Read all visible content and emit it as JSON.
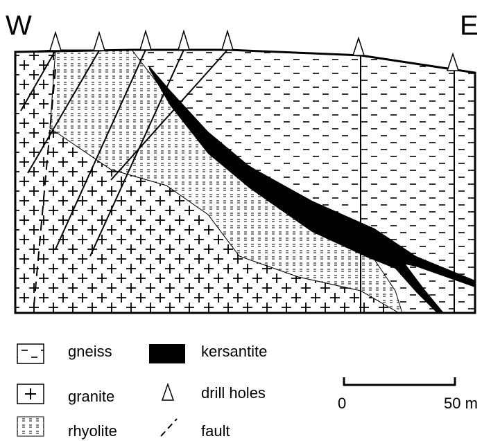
{
  "section": {
    "west": "W",
    "east": "E"
  },
  "legend": {
    "items": [
      {
        "label": "gneiss"
      },
      {
        "label": "kersantite"
      },
      {
        "label": "granite"
      },
      {
        "label": "drill holes"
      },
      {
        "label": "rhyolite"
      },
      {
        "label": "fault"
      }
    ]
  },
  "scale": {
    "start": "0",
    "end": "50 m"
  }
}
